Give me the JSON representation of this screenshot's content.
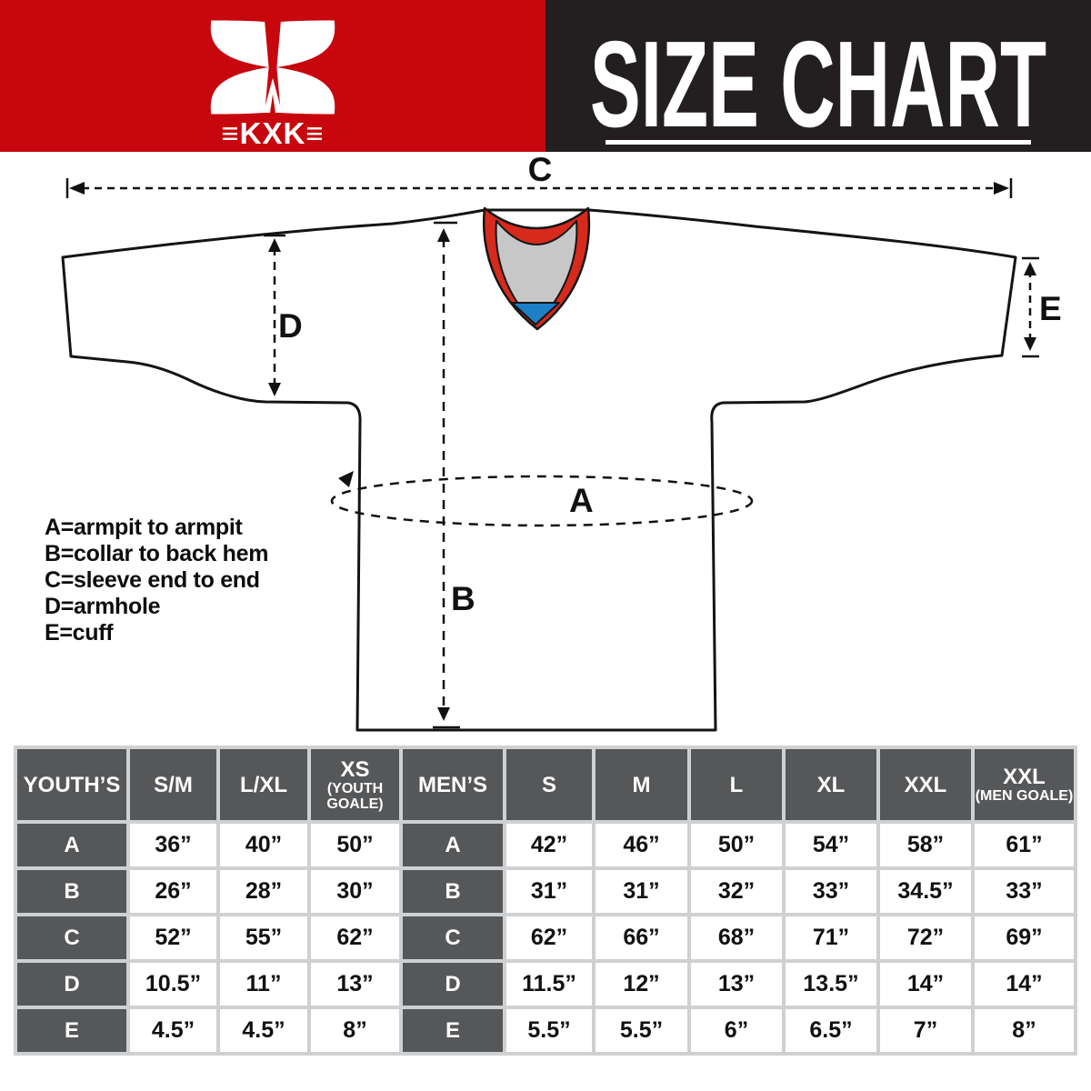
{
  "header": {
    "logo_text": "≡KXK≡",
    "title": "SIZE CHART"
  },
  "diagram": {
    "dim_labels": {
      "A": "A",
      "B": "B",
      "C": "C",
      "D": "D",
      "E": "E"
    },
    "legend_lines": [
      "A=armpit to armpit",
      "B=collar to back hem",
      "C=sleeve end to end",
      "D=armhole",
      "E=cuff"
    ]
  },
  "colors": {
    "brand_red": "#c7060d",
    "header_black": "#231f20",
    "collar_red": "#d62a1c",
    "collar_gray": "#c7c7c7",
    "collar_blue": "#1d7fc6",
    "cell_dark": "#565759",
    "table_gutter": "#cfd0d2"
  },
  "size_table": {
    "columns": [
      {
        "label": "YOUTH’S",
        "type": "label"
      },
      {
        "label": "S/M"
      },
      {
        "label": "L/XL"
      },
      {
        "label": "XS",
        "sub": "(YOUTH GOALE)"
      },
      {
        "label": "MEN’S",
        "type": "label"
      },
      {
        "label": "S"
      },
      {
        "label": "M"
      },
      {
        "label": "L"
      },
      {
        "label": "XL"
      },
      {
        "label": "XXL"
      },
      {
        "label": "XXL",
        "sub": "(MEN GOALE)"
      }
    ],
    "rows": [
      {
        "label": "A",
        "youth": [
          "36”",
          "40”",
          "50”"
        ],
        "men": [
          "42”",
          "46”",
          "50”",
          "54”",
          "58”",
          "61”"
        ]
      },
      {
        "label": "B",
        "youth": [
          "26”",
          "28”",
          "30”"
        ],
        "men": [
          "31”",
          "31”",
          "32”",
          "33”",
          "34.5”",
          "33”"
        ]
      },
      {
        "label": "C",
        "youth": [
          "52”",
          "55”",
          "62”"
        ],
        "men": [
          "62”",
          "66”",
          "68”",
          "71”",
          "72”",
          "69”"
        ]
      },
      {
        "label": "D",
        "youth": [
          "10.5”",
          "11”",
          "13”"
        ],
        "men": [
          "11.5”",
          "12”",
          "13”",
          "13.5”",
          "14”",
          "14”"
        ]
      },
      {
        "label": "E",
        "youth": [
          "4.5”",
          "4.5”",
          "8”"
        ],
        "men": [
          "5.5”",
          "5.5”",
          "6”",
          "6.5”",
          "7”",
          "8”"
        ]
      }
    ]
  }
}
